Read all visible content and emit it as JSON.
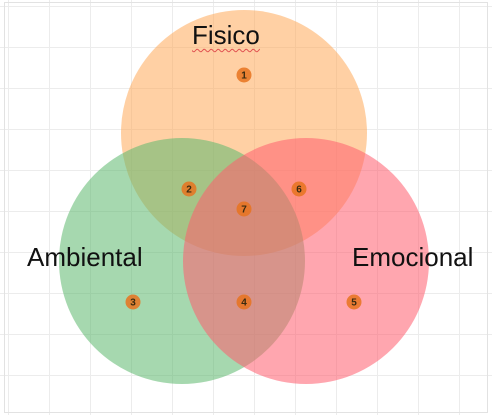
{
  "diagram": {
    "type": "venn-3",
    "sets": [
      {
        "label": "Fisico",
        "color": "#ffa95a"
      },
      {
        "label": "Ambiental",
        "color": "#5cb86d"
      },
      {
        "label": "Emocional",
        "color": "#ff5c6e"
      }
    ],
    "regions": [
      {
        "number": "1",
        "sets": [
          "Fisico"
        ]
      },
      {
        "number": "2",
        "sets": [
          "Fisico",
          "Ambiental"
        ]
      },
      {
        "number": "3",
        "sets": [
          "Ambiental"
        ]
      },
      {
        "number": "4",
        "sets": [
          "Ambiental",
          "Emocional"
        ]
      },
      {
        "number": "5",
        "sets": [
          "Emocional"
        ]
      },
      {
        "number": "6",
        "sets": [
          "Fisico",
          "Emocional"
        ]
      },
      {
        "number": "7",
        "sets": [
          "Fisico",
          "Ambiental",
          "Emocional"
        ]
      }
    ],
    "marker_color": "#e8731e"
  }
}
